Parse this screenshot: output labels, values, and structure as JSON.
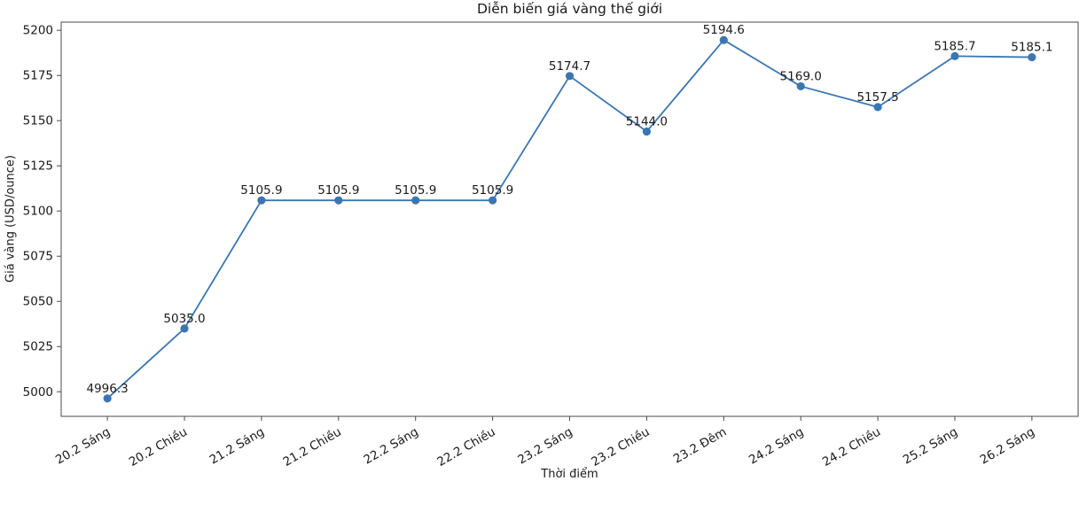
{
  "chart_data": {
    "type": "line",
    "title": "Diễn biến giá vàng thế giới",
    "xlabel": "Thời điểm",
    "ylabel": "Giá vàng (USD/ounce)",
    "categories": [
      "20.2 Sáng",
      "20.2 Chiều",
      "21.2 Sáng",
      "21.2 Chiều",
      "22.2 Sáng",
      "22.2 Chiều",
      "23.2 Sáng",
      "23.2 Chiều",
      "23.2 Đêm",
      "24.2 Sáng",
      "24.2 Chiều",
      "25.2 Sáng",
      "26.2 Sáng"
    ],
    "values": [
      4996.3,
      5035.0,
      5105.9,
      5105.9,
      5105.9,
      5105.9,
      5174.7,
      5144.0,
      5194.6,
      5169.0,
      5157.5,
      5185.7,
      5185.1
    ],
    "point_labels": [
      "4996.3",
      "5035.0",
      "5105.9",
      "5105.9",
      "5105.9",
      "5105.9",
      "5174.7",
      "5144.0",
      "5194.6",
      "5169.0",
      "5157.5",
      "5185.7",
      "5185.1"
    ],
    "yticks": [
      5000,
      5025,
      5050,
      5075,
      5100,
      5125,
      5150,
      5175,
      5200
    ],
    "ylim": [
      4986.4,
      5204.5
    ],
    "xtick_rotation_deg": 30,
    "grid": false,
    "legend": null,
    "colors": {
      "line": "#3a76b2",
      "marker": "#3a76b2",
      "axis": "#4a4a4a",
      "text": "#1a1a1a",
      "background": "#ffffff"
    }
  }
}
